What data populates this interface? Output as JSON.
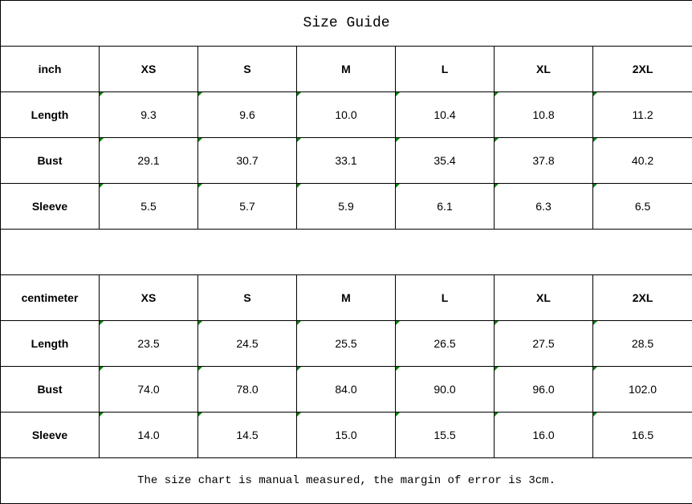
{
  "title": "Size Guide",
  "indicator_color": "#008000",
  "tables": [
    {
      "unit": "inch",
      "sizes": [
        "XS",
        "S",
        "M",
        "L",
        "XL",
        "2XL"
      ],
      "rows": [
        {
          "label": "Length",
          "values": [
            "9.3",
            "9.6",
            "10.0",
            "10.4",
            "10.8",
            "11.2"
          ]
        },
        {
          "label": "Bust",
          "values": [
            "29.1",
            "30.7",
            "33.1",
            "35.4",
            "37.8",
            "40.2"
          ]
        },
        {
          "label": "Sleeve",
          "values": [
            "5.5",
            "5.7",
            "5.9",
            "6.1",
            "6.3",
            "6.5"
          ]
        }
      ]
    },
    {
      "unit": "centimeter",
      "sizes": [
        "XS",
        "S",
        "M",
        "L",
        "XL",
        "2XL"
      ],
      "rows": [
        {
          "label": "Length",
          "values": [
            "23.5",
            "24.5",
            "25.5",
            "26.5",
            "27.5",
            "28.5"
          ]
        },
        {
          "label": "Bust",
          "values": [
            "74.0",
            "78.0",
            "84.0",
            "90.0",
            "96.0",
            "102.0"
          ]
        },
        {
          "label": "Sleeve",
          "values": [
            "14.0",
            "14.5",
            "15.0",
            "15.5",
            "16.0",
            "16.5"
          ]
        }
      ]
    }
  ],
  "note": "The size chart is manual measured, the margin of error is 3cm."
}
